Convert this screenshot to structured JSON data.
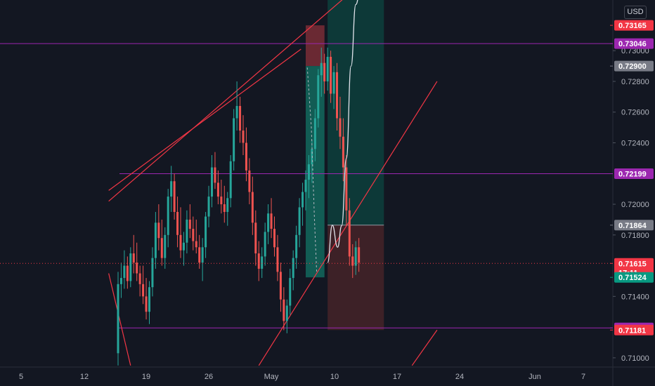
{
  "currency_button": "USD",
  "chart_data": {
    "type": "candlestick",
    "symbol_quote": "USD",
    "ylim": [
      0.7094,
      0.7333
    ],
    "y_ticks": [
      "0.73000",
      "0.72800",
      "0.72600",
      "0.72400",
      "0.72000",
      "0.71800",
      "0.71400",
      "0.71000"
    ],
    "x_ticks": [
      "5",
      "12",
      "19",
      "26",
      "May",
      "10",
      "17",
      "24",
      "Jun",
      "7"
    ],
    "price_tags": [
      {
        "id": "tag-top-red",
        "label": "0.73165",
        "value": 0.73165,
        "color": "#f23645"
      },
      {
        "id": "tag-resistance",
        "label": "0.73046",
        "value": 0.73046,
        "color": "#9c27b0"
      },
      {
        "id": "tag-entry",
        "label": "0.72900",
        "value": 0.729,
        "color": "#787b86"
      },
      {
        "id": "tag-mid-level",
        "label": "0.72199",
        "value": 0.72199,
        "color": "#9c27b0"
      },
      {
        "id": "tag-stop",
        "label": "0.71864",
        "value": 0.71864,
        "color": "#787b86"
      },
      {
        "id": "tag-last-price",
        "label": "0.71615",
        "value": 0.71615,
        "color": "#f23645",
        "countdown": "17:11"
      },
      {
        "id": "tag-green",
        "label": "0.71524",
        "value": 0.71524,
        "color": "#089981"
      },
      {
        "id": "tag-support",
        "label": "0.71195",
        "value": 0.71195,
        "color": "#9c27b0"
      },
      {
        "id": "tag-bottom-red",
        "label": "0.71181",
        "value": 0.71181,
        "color": "#f23645"
      }
    ],
    "horizontal_levels": [
      0.73046,
      0.72199,
      0.71195
    ],
    "last_price": 0.71615,
    "colors": {
      "up": "#26a69a",
      "down": "#ef5350",
      "level": "#9c27b0",
      "trend": "#f23645",
      "profit": "#0d3b3a",
      "loss": "#3f2228",
      "projection": "#e0e3eb"
    },
    "candles": [
      [
        0.7103,
        0.7156,
        0.7095,
        0.7148
      ],
      [
        0.7148,
        0.7162,
        0.7139,
        0.7152
      ],
      [
        0.7152,
        0.717,
        0.7145,
        0.716
      ],
      [
        0.716,
        0.7166,
        0.7145,
        0.715
      ],
      [
        0.715,
        0.7172,
        0.7146,
        0.7168
      ],
      [
        0.7168,
        0.718,
        0.7155,
        0.7162
      ],
      [
        0.7162,
        0.7175,
        0.715,
        0.7155
      ],
      [
        0.7155,
        0.716,
        0.714,
        0.7148
      ],
      [
        0.7148,
        0.716,
        0.7135,
        0.714
      ],
      [
        0.714,
        0.7152,
        0.7125,
        0.713
      ],
      [
        0.713,
        0.715,
        0.7122,
        0.7146
      ],
      [
        0.7146,
        0.7172,
        0.714,
        0.7165
      ],
      [
        0.7165,
        0.7195,
        0.7158,
        0.7188
      ],
      [
        0.7188,
        0.72,
        0.717,
        0.7178
      ],
      [
        0.7178,
        0.719,
        0.716,
        0.7165
      ],
      [
        0.7165,
        0.7185,
        0.7158,
        0.718
      ],
      [
        0.718,
        0.721,
        0.7172,
        0.7205
      ],
      [
        0.7205,
        0.7225,
        0.7195,
        0.7215
      ],
      [
        0.7215,
        0.722,
        0.719,
        0.7195
      ],
      [
        0.7195,
        0.7205,
        0.7172,
        0.718
      ],
      [
        0.718,
        0.7198,
        0.7165,
        0.717
      ],
      [
        0.717,
        0.7182,
        0.716,
        0.7175
      ],
      [
        0.7175,
        0.7196,
        0.7168,
        0.719
      ],
      [
        0.719,
        0.72,
        0.7178,
        0.7184
      ],
      [
        0.7184,
        0.7192,
        0.717,
        0.7176
      ],
      [
        0.7176,
        0.719,
        0.7168,
        0.7172
      ],
      [
        0.7172,
        0.718,
        0.7158,
        0.7162
      ],
      [
        0.7162,
        0.7178,
        0.715,
        0.7172
      ],
      [
        0.7172,
        0.7195,
        0.7165,
        0.7192
      ],
      [
        0.7192,
        0.7212,
        0.7185,
        0.7205
      ],
      [
        0.7205,
        0.7232,
        0.7198,
        0.7224
      ],
      [
        0.7224,
        0.7234,
        0.721,
        0.7214
      ],
      [
        0.7214,
        0.7222,
        0.72,
        0.7205
      ],
      [
        0.7205,
        0.7216,
        0.7194,
        0.72
      ],
      [
        0.72,
        0.7212,
        0.7188,
        0.7195
      ],
      [
        0.7195,
        0.7208,
        0.7186,
        0.7204
      ],
      [
        0.7204,
        0.7232,
        0.7198,
        0.7228
      ],
      [
        0.7228,
        0.7262,
        0.7222,
        0.7256
      ],
      [
        0.7256,
        0.728,
        0.7248,
        0.7264
      ],
      [
        0.7264,
        0.727,
        0.724,
        0.7248
      ],
      [
        0.7248,
        0.7258,
        0.7232,
        0.724
      ],
      [
        0.724,
        0.725,
        0.7215,
        0.7222
      ],
      [
        0.7222,
        0.723,
        0.72,
        0.7208
      ],
      [
        0.7208,
        0.7218,
        0.718,
        0.7188
      ],
      [
        0.7188,
        0.7196,
        0.716,
        0.7168
      ],
      [
        0.7168,
        0.7176,
        0.715,
        0.7158
      ],
      [
        0.7158,
        0.7172,
        0.7152,
        0.7166
      ],
      [
        0.7166,
        0.7188,
        0.716,
        0.7182
      ],
      [
        0.7182,
        0.72,
        0.7174,
        0.7194
      ],
      [
        0.7194,
        0.7204,
        0.7178,
        0.7184
      ],
      [
        0.7184,
        0.7192,
        0.7166,
        0.7172
      ],
      [
        0.7172,
        0.718,
        0.715,
        0.7156
      ],
      [
        0.7156,
        0.7162,
        0.713,
        0.7138
      ],
      [
        0.7138,
        0.7146,
        0.7118,
        0.7124
      ],
      [
        0.7124,
        0.7138,
        0.7116,
        0.7134
      ],
      [
        0.7134,
        0.7158,
        0.7128,
        0.7152
      ],
      [
        0.7152,
        0.717,
        0.7144,
        0.7165
      ],
      [
        0.7165,
        0.7186,
        0.7158,
        0.718
      ],
      [
        0.718,
        0.7204,
        0.7172,
        0.7198
      ],
      [
        0.7198,
        0.7214,
        0.7186,
        0.7208
      ],
      [
        0.7208,
        0.7222,
        0.7196,
        0.7216
      ],
      [
        0.7216,
        0.7232,
        0.7204,
        0.7226
      ],
      [
        0.7226,
        0.7242,
        0.7214,
        0.7236
      ],
      [
        0.7236,
        0.7262,
        0.7228,
        0.7256
      ],
      [
        0.7256,
        0.7288,
        0.725,
        0.7284
      ],
      [
        0.7284,
        0.7302,
        0.727,
        0.7292
      ],
      [
        0.7292,
        0.7298,
        0.7272,
        0.728
      ],
      [
        0.728,
        0.7302,
        0.7274,
        0.7296
      ],
      [
        0.7296,
        0.73,
        0.7266,
        0.7272
      ],
      [
        0.7272,
        0.729,
        0.7262,
        0.7286
      ],
      [
        0.7286,
        0.7292,
        0.7248,
        0.7256
      ],
      [
        0.7256,
        0.727,
        0.7236,
        0.7244
      ],
      [
        0.7244,
        0.7256,
        0.7215,
        0.7224
      ],
      [
        0.7224,
        0.7232,
        0.7186,
        0.7196
      ],
      [
        0.7196,
        0.7204,
        0.716,
        0.7166
      ],
      [
        0.7166,
        0.7174,
        0.7152,
        0.716
      ],
      [
        0.716,
        0.7176,
        0.7154,
        0.7172
      ],
      [
        0.7172,
        0.7178,
        0.7156,
        0.7162
      ]
    ],
    "trendlines": [
      {
        "id": "upper-channel-line",
        "x1": -3,
        "y1": 0.7202,
        "x2": 79,
        "y2": 0.7346
      },
      {
        "id": "upper-trendline",
        "x1": -3,
        "y1": 0.7209,
        "x2": 58.5,
        "y2": 0.7301
      },
      {
        "id": "lower-trendline",
        "x1": 45,
        "y1": 0.7095,
        "x2": 102,
        "y2": 0.728
      },
      {
        "id": "lower-left-line",
        "x1": -3,
        "y1": 0.7155,
        "x2": 4,
        "y2": 0.7095
      },
      {
        "id": "lower-right-line",
        "x1": 94,
        "y1": 0.7095,
        "x2": 102,
        "y2": 0.71181
      }
    ],
    "short_position": {
      "x_start": 60,
      "x_end": 66,
      "entry": 0.729,
      "stop": 0.73165,
      "target": 0.71524
    },
    "long_position": {
      "x_start": 67,
      "x_end": 85,
      "entry": 0.71864,
      "stop": 0.71181,
      "target": 0.734
    },
    "projection_path": [
      [
        67,
        0.7162
      ],
      [
        68.5,
        0.71864
      ],
      [
        70.2,
        0.7172
      ],
      [
        71.5,
        0.7186
      ],
      [
        73,
        0.723
      ],
      [
        74.5,
        0.729
      ],
      [
        76,
        0.733
      ],
      [
        77.5,
        0.734
      ]
    ],
    "dashed_path": [
      [
        60.5,
        0.7289
      ],
      [
        61.8,
        0.725
      ],
      [
        62.8,
        0.719
      ],
      [
        63.5,
        0.7156
      ]
    ]
  }
}
